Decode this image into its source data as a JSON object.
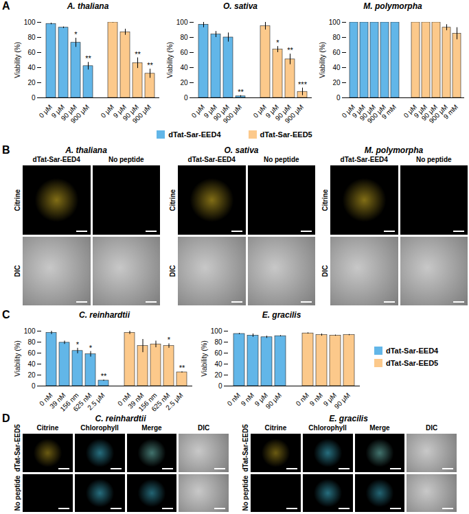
{
  "chart_data": [
    {
      "type": "bar",
      "panel": "A",
      "title": "A. thaliana",
      "y_label": "Viability (%)",
      "ylim": [
        0,
        100
      ],
      "yticks": [
        0,
        20,
        40,
        60,
        80,
        100
      ],
      "legend": "bottom",
      "series": [
        {
          "name": "dTat-Sar-EED4",
          "color": "#62b6e8",
          "categories": [
            "0 μM",
            "9 μM",
            "90 μM",
            "900 μM"
          ],
          "values": [
            98,
            93,
            73,
            42
          ],
          "errors": [
            1,
            1,
            6,
            5
          ],
          "annotations": [
            null,
            null,
            "*",
            "**"
          ]
        },
        {
          "name": "dTat-Sar-EED5",
          "color": "#fcc98b",
          "categories": [
            "0 μM",
            "9 μM",
            "90 μM",
            "900 μM"
          ],
          "values": [
            100,
            87,
            46,
            32
          ],
          "errors": [
            0.5,
            4,
            7,
            6
          ],
          "annotations": [
            null,
            null,
            "**",
            "**"
          ]
        }
      ]
    },
    {
      "type": "bar",
      "panel": "A",
      "title": "O. sativa",
      "y_label": "Viability (%)",
      "ylim": [
        0,
        100
      ],
      "yticks": [
        0,
        20,
        40,
        60,
        80,
        100
      ],
      "legend": "bottom",
      "series": [
        {
          "name": "dTat-Sar-EED4",
          "color": "#62b6e8",
          "categories": [
            "0 μM",
            "9 μM",
            "90 μM",
            "900 μM"
          ],
          "values": [
            97,
            84,
            80,
            2
          ],
          "errors": [
            4,
            4,
            6,
            1
          ],
          "annotations": [
            null,
            null,
            null,
            "**"
          ]
        },
        {
          "name": "dTat-Sar-EED5",
          "color": "#fcc98b",
          "categories": [
            "0 μM",
            "9 μM",
            "90 μM",
            "900 μM"
          ],
          "values": [
            95,
            64,
            51,
            8
          ],
          "errors": [
            5,
            4,
            7,
            5
          ],
          "annotations": [
            null,
            "*",
            "**",
            "***"
          ]
        }
      ]
    },
    {
      "type": "bar",
      "panel": "A",
      "title": "M. polymorpha",
      "y_label": "Viability (%)",
      "ylim": [
        0,
        100
      ],
      "yticks": [
        0,
        20,
        40,
        60,
        80,
        100
      ],
      "legend": "bottom",
      "series": [
        {
          "name": "dTat-Sar-EED4",
          "color": "#62b6e8",
          "categories": [
            "0 μM",
            "9 μM",
            "90 μM",
            "900 μM",
            "9 mM"
          ],
          "values": [
            100,
            100,
            100,
            100,
            100
          ],
          "errors": [
            0,
            0,
            0,
            0,
            0
          ],
          "annotations": [
            null,
            null,
            null,
            null,
            null
          ]
        },
        {
          "name": "dTat-Sar-EED5",
          "color": "#fcc98b",
          "categories": [
            "0 μM",
            "9 μM",
            "90 μM",
            "900 μM",
            "9 mM"
          ],
          "values": [
            100,
            100,
            100,
            93,
            85
          ],
          "errors": [
            0,
            0,
            0,
            4,
            8
          ],
          "annotations": [
            null,
            null,
            null,
            null,
            null
          ]
        }
      ]
    },
    {
      "type": "bar",
      "panel": "C",
      "title": "C. reinhardtii",
      "y_label": "Viability (%)",
      "ylim": [
        0,
        100
      ],
      "yticks": [
        0,
        20,
        40,
        60,
        80,
        100
      ],
      "legend": "right",
      "series": [
        {
          "name": "dTat-Sar-EED4",
          "color": "#62b6e8",
          "categories": [
            "0 nM",
            "39 nM",
            "156 nm",
            "625 nM",
            "2.5 μM"
          ],
          "values": [
            97,
            79,
            64,
            58,
            10
          ],
          "errors": [
            3,
            3,
            5,
            5,
            1
          ],
          "annotations": [
            null,
            null,
            "*",
            "*",
            "**"
          ]
        },
        {
          "name": "dTat-Sar-EED5",
          "color": "#fcc98b",
          "categories": [
            "0 nM",
            "39 nM",
            "156 nm",
            "625 nM",
            "2.5 μM"
          ],
          "values": [
            97,
            73,
            76,
            73,
            25
          ],
          "errors": [
            3,
            12,
            6,
            4,
            1
          ],
          "annotations": [
            null,
            null,
            null,
            "*",
            "**"
          ]
        }
      ]
    },
    {
      "type": "bar",
      "panel": "C",
      "title": "E. gracilis",
      "y_label": "Viability (%)",
      "ylim": [
        0,
        100
      ],
      "yticks": [
        0,
        20,
        40,
        60,
        80,
        100
      ],
      "legend": "right",
      "series": [
        {
          "name": "dTat-Sar-EED4",
          "color": "#62b6e8",
          "categories": [
            "0 nM",
            "9 nM",
            "9 μM",
            "90 μM"
          ],
          "values": [
            95,
            92,
            89,
            91
          ],
          "errors": [
            1,
            3,
            2,
            1
          ],
          "annotations": [
            null,
            null,
            null,
            null
          ]
        },
        {
          "name": "dTat-Sar-EED5",
          "color": "#fcc98b",
          "categories": [
            "0 nM",
            "9 nM",
            "9 μM",
            "90 μM"
          ],
          "values": [
            96,
            93,
            92,
            93
          ],
          "errors": [
            1,
            2,
            1,
            1
          ],
          "annotations": [
            null,
            null,
            null,
            null
          ]
        }
      ]
    }
  ],
  "image_panels": [
    {
      "panel": "B",
      "groups": [
        {
          "title": "A. thaliana",
          "columns": [
            "dTat-Sar-EED4",
            "No peptide"
          ],
          "rows": [
            "Citrine",
            "DIC"
          ]
        },
        {
          "title": "O. sativa",
          "columns": [
            "dTat-Sar-EED4",
            "No peptide"
          ],
          "rows": [
            "Citrine",
            "DIC"
          ]
        },
        {
          "title": "M. polymorpha",
          "columns": [
            "dTat-Sar-EED4",
            "No peptide"
          ],
          "rows": [
            "Citrine",
            "DIC"
          ]
        }
      ]
    },
    {
      "panel": "D",
      "groups": [
        {
          "title": "C. reinhardtii",
          "columns": [
            "Citrine",
            "Chlorophyll",
            "Merge",
            "DIC"
          ],
          "rows": [
            "dTat-Sar-EED5",
            "No peptide"
          ]
        },
        {
          "title": "E. gracilis",
          "columns": [
            "Citrine",
            "Chlorophyll",
            "Merge",
            "DIC"
          ],
          "rows": [
            "dTat-Sar-EED5",
            "No peptide"
          ]
        }
      ]
    }
  ]
}
